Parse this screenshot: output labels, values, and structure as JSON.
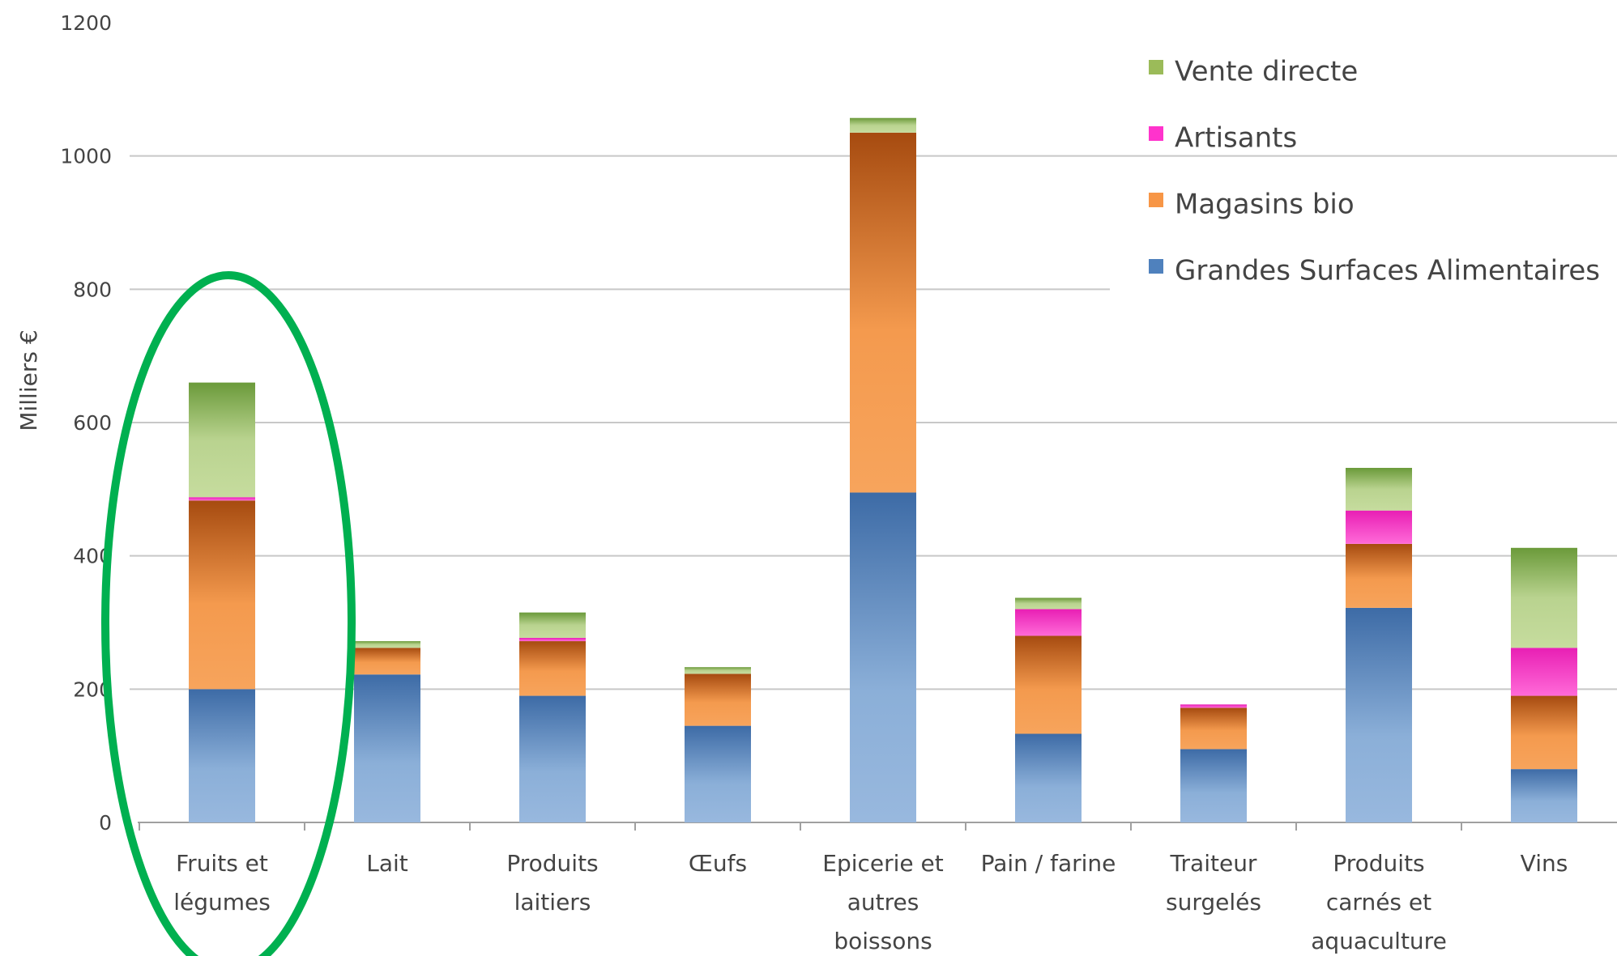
{
  "chart_data": {
    "type": "bar",
    "stacked": true,
    "ylabel": "Milliers €",
    "ylim": [
      0,
      1200
    ],
    "yticks": [
      0,
      200,
      400,
      600,
      800,
      1000,
      1200
    ],
    "grid": true,
    "legend_position": "top-right",
    "categories": [
      [
        "Fruits et",
        "légumes"
      ],
      [
        "Lait"
      ],
      [
        "Produits",
        "laitiers"
      ],
      [
        "Œufs"
      ],
      [
        "Epicerie et",
        "autres",
        "boissons"
      ],
      [
        "Pain / farine"
      ],
      [
        "Traiteur",
        "surgelés"
      ],
      [
        "Produits",
        "carnés et",
        "aquaculture"
      ],
      [
        "Vins"
      ]
    ],
    "series": [
      {
        "name": "Grandes Surfaces Alimentaires",
        "color": "#4F81BD",
        "values": [
          200,
          222,
          190,
          145,
          495,
          133,
          110,
          322,
          80
        ]
      },
      {
        "name": "Magasins bio",
        "color": "#F79646",
        "values": [
          283,
          40,
          82,
          78,
          540,
          147,
          62,
          96,
          110
        ]
      },
      {
        "name": "Artisants",
        "color": "#FF33CC",
        "values": [
          5,
          0,
          5,
          0,
          0,
          40,
          5,
          50,
          72
        ]
      },
      {
        "name": "Vente directe",
        "color": "#9BBB59",
        "values": [
          172,
          10,
          38,
          10,
          22,
          17,
          0,
          64,
          150
        ]
      }
    ],
    "highlighted_category": "Fruits et légumes",
    "highlight_color": "#00B050"
  }
}
